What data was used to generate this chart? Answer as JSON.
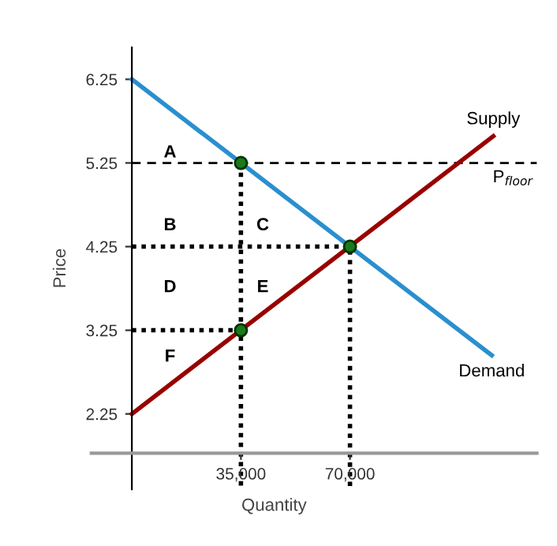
{
  "chart_data": {
    "type": "line",
    "xlabel": "Quantity",
    "ylabel": "Price",
    "xlim": [
      -13000,
      130000
    ],
    "ylim": [
      1.35,
      6.63
    ],
    "xticks": [
      {
        "value": 35000,
        "label": "35,000"
      },
      {
        "value": 70000,
        "label": "70,000"
      }
    ],
    "yticks": [
      2.25,
      3.25,
      4.25,
      5.25,
      6.25
    ],
    "grid": false,
    "series": [
      {
        "name": "Supply",
        "color": "#990000",
        "x": [
          0,
          116000
        ],
        "values": [
          2.25,
          5.57
        ]
      },
      {
        "name": "Demand",
        "color": "#2a8fcf",
        "x": [
          0,
          115500
        ],
        "values": [
          6.25,
          2.95
        ]
      },
      {
        "color": "#000000",
        "line_style": "dotted",
        "x": [
          0,
          70000,
          70000
        ],
        "values": [
          4.25,
          4.25,
          1.35
        ]
      },
      {
        "color": "#000000",
        "line_style": "dotted",
        "x": [
          35000,
          35000
        ],
        "values": [
          5.25,
          1.35
        ]
      },
      {
        "color": "#000000",
        "line_style": "dotted",
        "x": [
          0,
          35000
        ],
        "values": [
          3.25,
          3.25
        ]
      },
      {
        "type": "scatter",
        "color": "#1a7a1a",
        "marker": "circle",
        "x": [
          35000,
          70000,
          35000
        ],
        "values": [
          5.25,
          4.25,
          3.25
        ]
      }
    ],
    "ref_lines": [
      {
        "axis": "y",
        "value": 5.25,
        "label": "P$_{floor}$",
        "color": "#000000",
        "line_style": "dashed"
      }
    ],
    "annotations": [
      "A",
      "B",
      "C",
      "D",
      "E",
      "F"
    ]
  }
}
